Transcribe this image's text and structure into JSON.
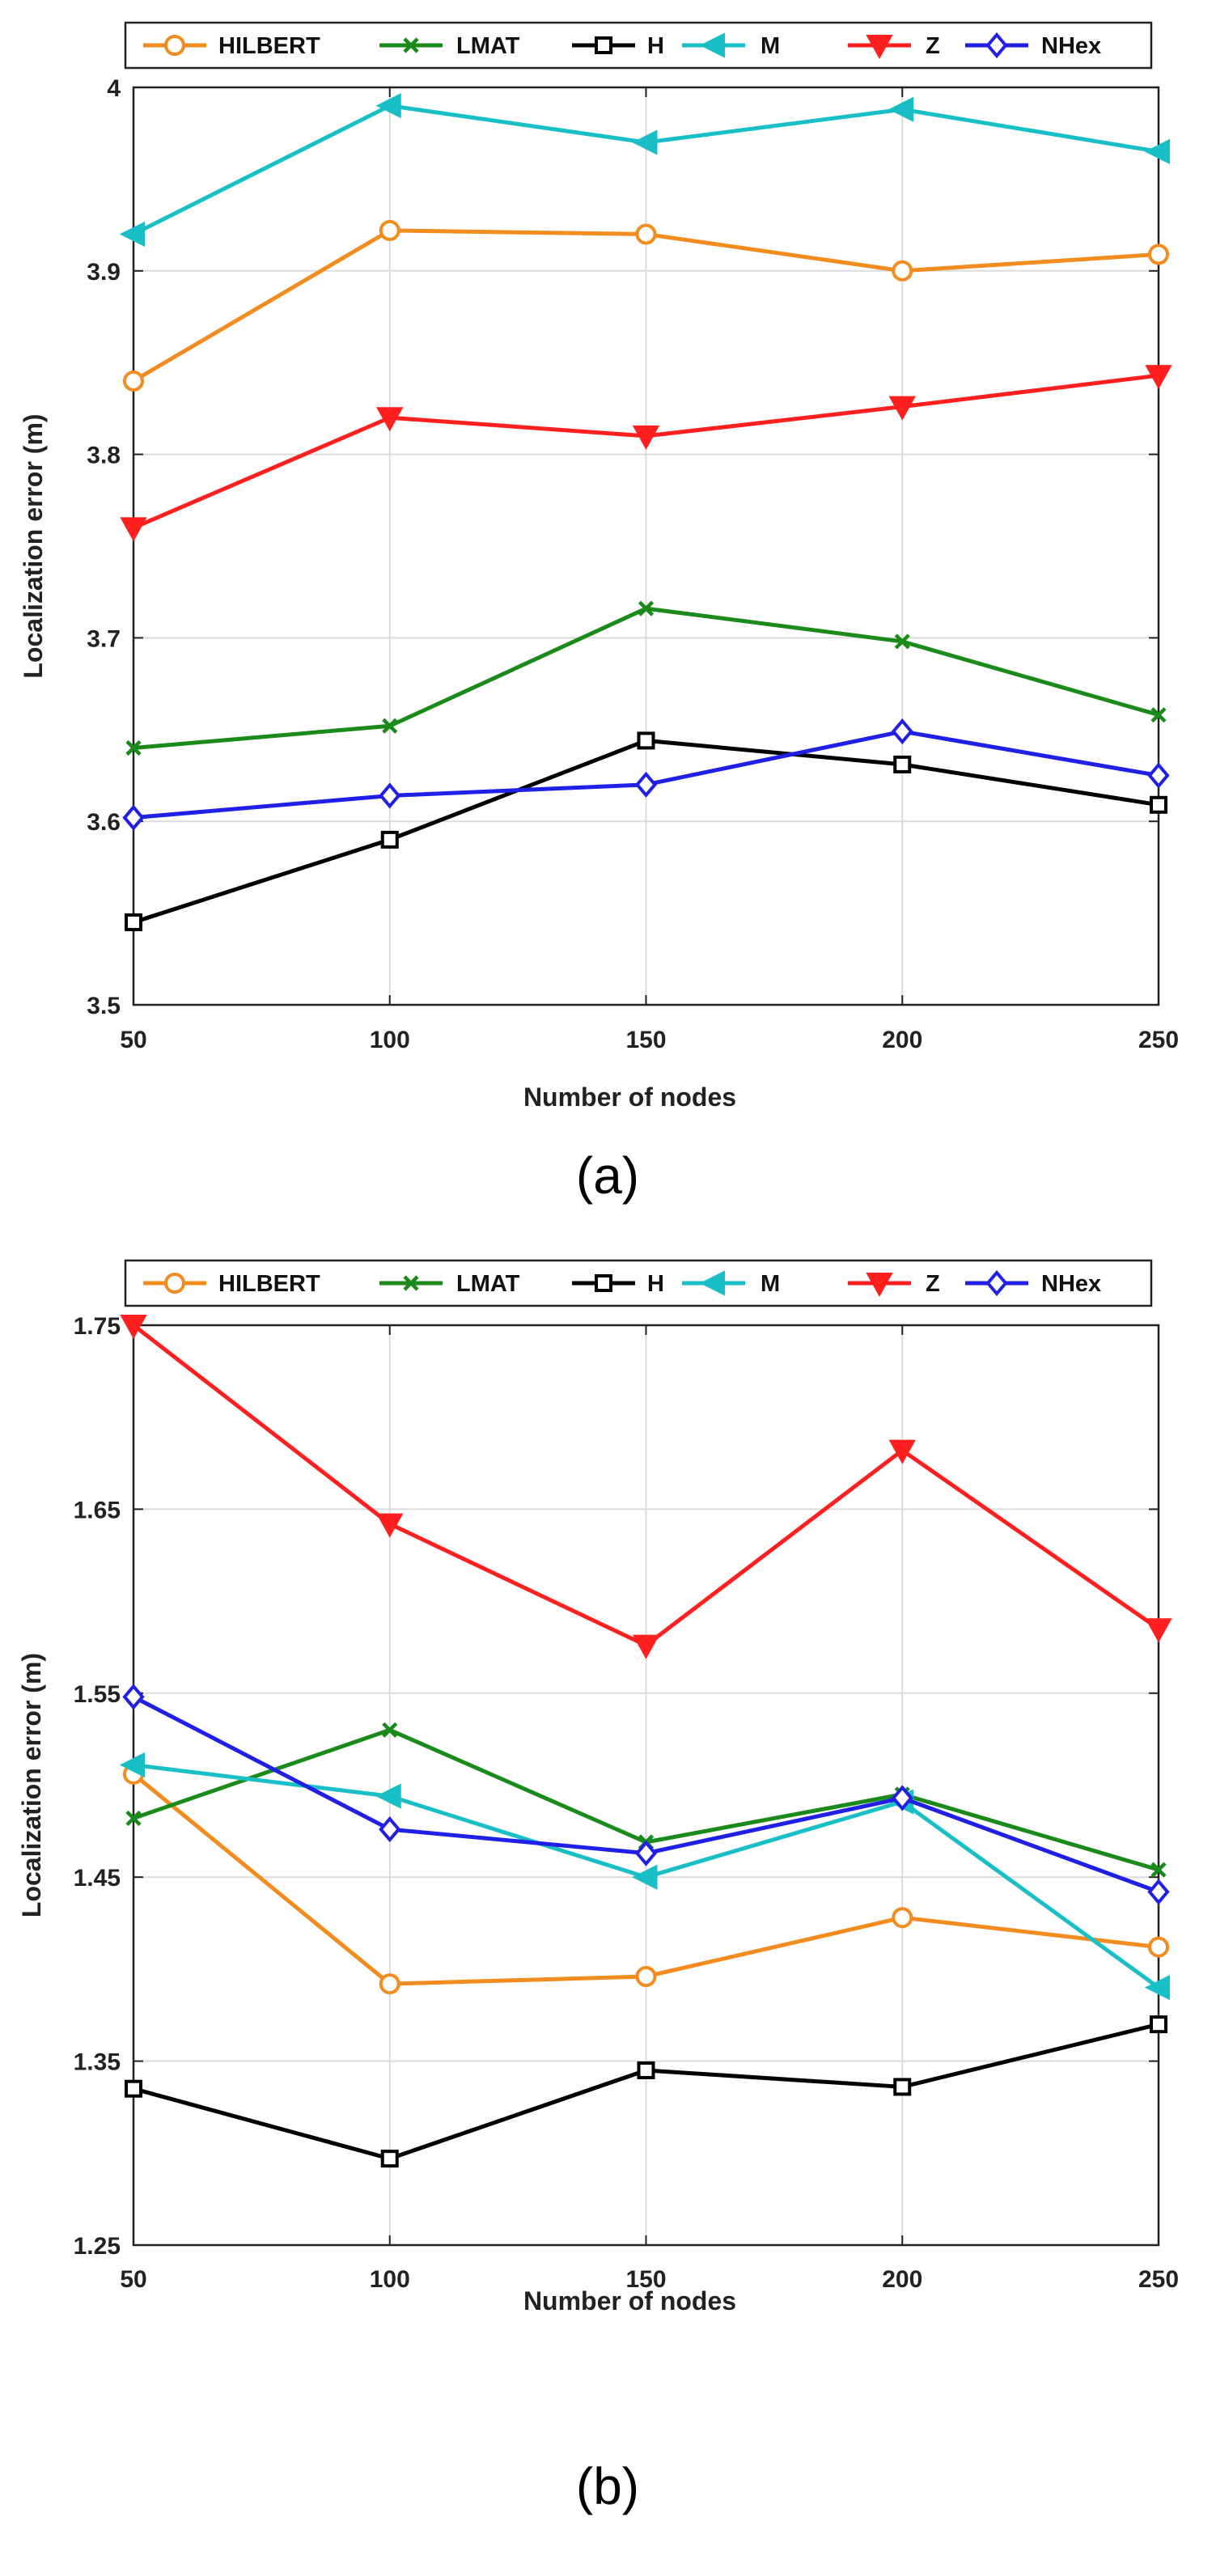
{
  "chart_data": [
    {
      "type": "line",
      "panel_label": "(a)",
      "xlabel": "Number of nodes",
      "ylabel": "Localization error (m)",
      "x": [
        50,
        100,
        150,
        200,
        250
      ],
      "xticks": [
        "50",
        "100",
        "150",
        "200",
        "250"
      ],
      "ylim": [
        3.5,
        4.0
      ],
      "yticks": [
        "3.5",
        "3.6",
        "3.7",
        "3.8",
        "3.9",
        "4"
      ],
      "grid": true,
      "legend_position": "top",
      "series": [
        {
          "name": "HILBERT",
          "color": "#f28c1e",
          "marker": "circle",
          "values": [
            3.84,
            3.922,
            3.92,
            3.9,
            3.909
          ]
        },
        {
          "name": "LMAT",
          "color": "#1a8a1a",
          "marker": "x",
          "values": [
            3.64,
            3.652,
            3.716,
            3.698,
            3.658
          ]
        },
        {
          "name": "H",
          "color": "#000000",
          "marker": "square",
          "values": [
            3.545,
            3.59,
            3.644,
            3.631,
            3.609
          ]
        },
        {
          "name": "M",
          "color": "#19bfc6",
          "marker": "triangle-left",
          "values": [
            3.92,
            3.99,
            3.97,
            3.988,
            3.965
          ]
        },
        {
          "name": "Z",
          "color": "#ff1f1f",
          "marker": "triangle-down",
          "values": [
            3.76,
            3.82,
            3.81,
            3.826,
            3.843
          ]
        },
        {
          "name": "NHex",
          "color": "#1f1fe6",
          "marker": "diamond",
          "values": [
            3.602,
            3.614,
            3.62,
            3.649,
            3.625
          ]
        }
      ]
    },
    {
      "type": "line",
      "panel_label": "(b)",
      "xlabel": "Number of nodes",
      "ylabel": "Localization error (m)",
      "x": [
        50,
        100,
        150,
        200,
        250
      ],
      "xticks": [
        "50",
        "100",
        "150",
        "200",
        "250"
      ],
      "ylim": [
        1.25,
        1.75
      ],
      "yticks": [
        "1.25",
        "1.35",
        "1.45",
        "1.55",
        "1.65",
        "1.75"
      ],
      "grid": true,
      "legend_position": "top",
      "series": [
        {
          "name": "HILBERT",
          "color": "#f28c1e",
          "marker": "circle",
          "values": [
            1.506,
            1.392,
            1.396,
            1.428,
            1.412
          ]
        },
        {
          "name": "LMAT",
          "color": "#1a8a1a",
          "marker": "x",
          "values": [
            1.482,
            1.53,
            1.469,
            1.495,
            1.454
          ]
        },
        {
          "name": "H",
          "color": "#000000",
          "marker": "square",
          "values": [
            1.335,
            1.297,
            1.345,
            1.336,
            1.37
          ]
        },
        {
          "name": "M",
          "color": "#19bfc6",
          "marker": "triangle-left",
          "values": [
            1.511,
            1.494,
            1.45,
            1.491,
            1.39
          ]
        },
        {
          "name": "Z",
          "color": "#ff1f1f",
          "marker": "triangle-down",
          "values": [
            1.75,
            1.642,
            1.576,
            1.682,
            1.585
          ]
        },
        {
          "name": "NHex",
          "color": "#1f1fe6",
          "marker": "diamond",
          "values": [
            1.548,
            1.476,
            1.463,
            1.493,
            1.442
          ]
        }
      ]
    }
  ]
}
